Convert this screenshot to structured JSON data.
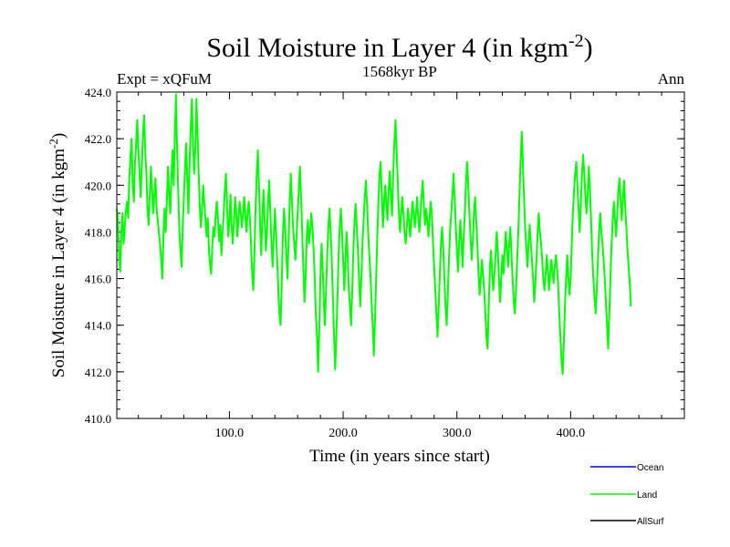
{
  "chart_data": {
    "type": "line",
    "title": "Soil Moisture in Layer 4 (in kgm",
    "title_sup": "-2",
    "title_close": ")",
    "subtitle_left": "Expt = xQFuM",
    "subtitle_center": "1568kyr BP",
    "subtitle_right": "Ann",
    "xlabel": "Time (in years since start)",
    "ylabel": "Soil Moisture in Layer 4 (in kgm",
    "ylabel_sup": "-2",
    "ylabel_close": ")",
    "xlim": [
      1,
      500
    ],
    "ylim": [
      410,
      424
    ],
    "xticks": [
      100,
      200,
      300,
      400
    ],
    "xtick_labels": [
      "100.0",
      "200.0",
      "300.0",
      "400.0"
    ],
    "yticks": [
      410,
      412,
      414,
      416,
      418,
      420,
      422,
      424
    ],
    "ytick_labels": [
      "410.0",
      "412.0",
      "414.0",
      "416.0",
      "418.0",
      "420.0",
      "422.0",
      "424.0"
    ],
    "series": [
      {
        "name": "Land",
        "color": "#00ff00",
        "x_start": 1,
        "x_step": 1,
        "values": [
          419.0,
          418.5,
          417.0,
          416.3,
          418.0,
          418.8,
          417.5,
          418.2,
          418.9,
          419.3,
          418.6,
          420.3,
          421.2,
          422.0,
          420.0,
          419.3,
          421.0,
          421.8,
          422.8,
          421.5,
          420.5,
          419.5,
          420.8,
          422.2,
          423.0,
          421.5,
          420.5,
          419.0,
          418.3,
          419.6,
          420.8,
          419.8,
          418.8,
          419.6,
          420.3,
          419.0,
          418.5,
          418.0,
          417.5,
          416.8,
          416.0,
          417.8,
          419.0,
          418.0,
          419.3,
          420.8,
          419.6,
          418.8,
          420.3,
          421.5,
          420.0,
          422.0,
          423.9,
          421.5,
          419.8,
          418.0,
          417.2,
          416.5,
          418.3,
          419.5,
          420.8,
          421.8,
          420.2,
          418.8,
          421.0,
          422.5,
          423.7,
          421.8,
          420.5,
          421.5,
          423.7,
          422.2,
          420.5,
          419.0,
          418.2,
          419.0,
          420.0,
          419.2,
          418.5,
          417.8,
          418.6,
          417.2,
          416.6,
          416.2,
          417.5,
          418.2,
          417.8,
          418.8,
          419.3,
          418.5,
          417.6,
          418.3,
          417.0,
          418.0,
          418.8,
          419.8,
          420.5,
          419.0,
          417.8,
          418.5,
          419.6,
          418.2,
          417.5,
          418.5,
          419.5,
          418.8,
          417.8,
          418.6,
          419.3,
          418.8,
          418.2,
          418.8,
          419.5,
          418.7,
          418.0,
          418.8,
          419.3,
          418.6,
          417.5,
          416.2,
          415.5,
          417.0,
          419.0,
          420.5,
          421.5,
          420.0,
          418.2,
          417.0,
          418.6,
          419.8,
          418.5,
          417.2,
          418.0,
          419.3,
          420.2,
          418.8,
          417.5,
          416.5,
          417.8,
          419.0,
          418.0,
          416.8,
          415.5,
          414.5,
          414.0,
          415.8,
          417.8,
          419.0,
          418.2,
          417.0,
          416.0,
          417.5,
          419.3,
          420.5,
          419.3,
          418.2,
          417.5,
          416.8,
          417.8,
          418.8,
          419.8,
          420.8,
          419.5,
          418.0,
          416.5,
          415.0,
          416.0,
          417.8,
          418.5,
          417.5,
          418.0,
          418.8,
          418.2,
          417.3,
          416.0,
          414.5,
          413.5,
          412.0,
          413.8,
          416.0,
          417.5,
          416.5,
          415.0,
          414.0,
          415.5,
          417.0,
          418.2,
          419.0,
          418.0,
          416.8,
          415.2,
          413.5,
          412.1,
          413.5,
          415.2,
          417.0,
          418.2,
          419.0,
          418.0,
          416.8,
          415.5,
          416.8,
          418.0,
          417.0,
          415.5,
          414.8,
          414.0,
          415.5,
          417.2,
          418.5,
          419.2,
          418.2,
          417.2,
          416.0,
          414.8,
          416.0,
          417.5,
          418.5,
          419.5,
          420.2,
          419.2,
          418.0,
          417.0,
          416.2,
          415.0,
          414.0,
          412.7,
          414.2,
          416.0,
          417.8,
          419.3,
          420.5,
          421.0,
          419.5,
          418.2,
          419.3,
          420.0,
          419.2,
          418.5,
          419.8,
          420.6,
          419.5,
          418.7,
          420.5,
          421.8,
          422.8,
          421.5,
          420.2,
          418.8,
          418.0,
          418.8,
          419.5,
          418.8,
          418.0,
          417.5,
          418.2,
          419.0,
          418.5,
          417.8,
          418.5,
          419.3,
          418.8,
          418.2,
          418.8,
          419.5,
          418.6,
          418.0,
          418.8,
          419.6,
          420.2,
          419.0,
          418.3,
          419.0,
          418.5,
          417.8,
          418.6,
          419.3,
          418.8,
          417.5,
          416.5,
          415.5,
          414.5,
          413.5,
          414.8,
          416.2,
          417.5,
          418.2,
          417.3,
          416.0,
          414.8,
          414.0,
          415.3,
          416.8,
          418.0,
          418.8,
          419.5,
          420.5,
          419.5,
          418.3,
          417.2,
          416.3,
          417.5,
          418.5,
          417.6,
          416.5,
          417.8,
          418.8,
          420.2,
          421.0,
          420.0,
          418.8,
          417.8,
          416.8,
          417.6,
          418.8,
          419.5,
          418.5,
          417.5,
          416.2,
          415.3,
          416.0,
          416.8,
          416.2,
          415.5,
          414.5,
          413.5,
          413.0,
          414.8,
          416.5,
          417.2,
          416.3,
          415.5,
          416.2,
          417.0,
          418.0,
          417.2,
          416.0,
          415.0,
          416.0,
          417.0,
          416.2,
          417.2,
          418.0,
          417.2,
          416.5,
          417.5,
          418.2,
          417.0,
          416.0,
          415.0,
          414.5,
          415.5,
          416.8,
          418.0,
          419.5,
          421.0,
          422.3,
          421.0,
          419.5,
          418.2,
          417.3,
          416.5,
          417.5,
          418.3,
          417.5,
          416.8,
          416.0,
          415.0,
          415.8,
          416.8,
          418.0,
          418.8,
          418.0,
          417.5,
          416.8,
          416.0,
          415.5,
          416.2,
          417.0,
          416.3,
          415.5,
          416.2,
          416.8,
          416.3,
          415.8,
          416.5,
          417.0,
          416.5,
          415.8,
          414.5,
          413.5,
          412.5,
          411.9,
          413.2,
          414.8,
          416.0,
          417.0,
          416.0,
          415.3,
          416.0,
          417.5,
          418.8,
          419.8,
          420.5,
          421.0,
          420.0,
          419.0,
          418.0,
          419.2,
          420.5,
          421.3,
          420.5,
          419.5,
          418.8,
          419.6,
          420.8,
          419.8,
          418.5,
          417.0,
          416.0,
          415.2,
          414.5,
          415.5,
          416.8,
          418.0,
          418.8,
          418.0,
          417.5,
          416.8,
          416.0,
          415.0,
          414.0,
          413.0,
          414.5,
          416.0,
          417.5,
          418.5,
          419.3,
          418.5,
          417.8,
          418.8,
          419.8,
          420.3,
          419.3,
          418.5,
          419.5,
          420.2,
          419.0,
          418.2,
          417.2,
          416.5,
          415.8,
          414.8
        ]
      },
      {
        "name": "Ocean",
        "color": "#0000ff",
        "values": []
      },
      {
        "name": "AllSurf",
        "color": "#000000",
        "values": []
      }
    ],
    "legend": [
      {
        "label": "Ocean",
        "color": "#0000ff"
      },
      {
        "label": "Land",
        "color": "#00ff00"
      },
      {
        "label": "AllSurf",
        "color": "#000000"
      }
    ]
  }
}
